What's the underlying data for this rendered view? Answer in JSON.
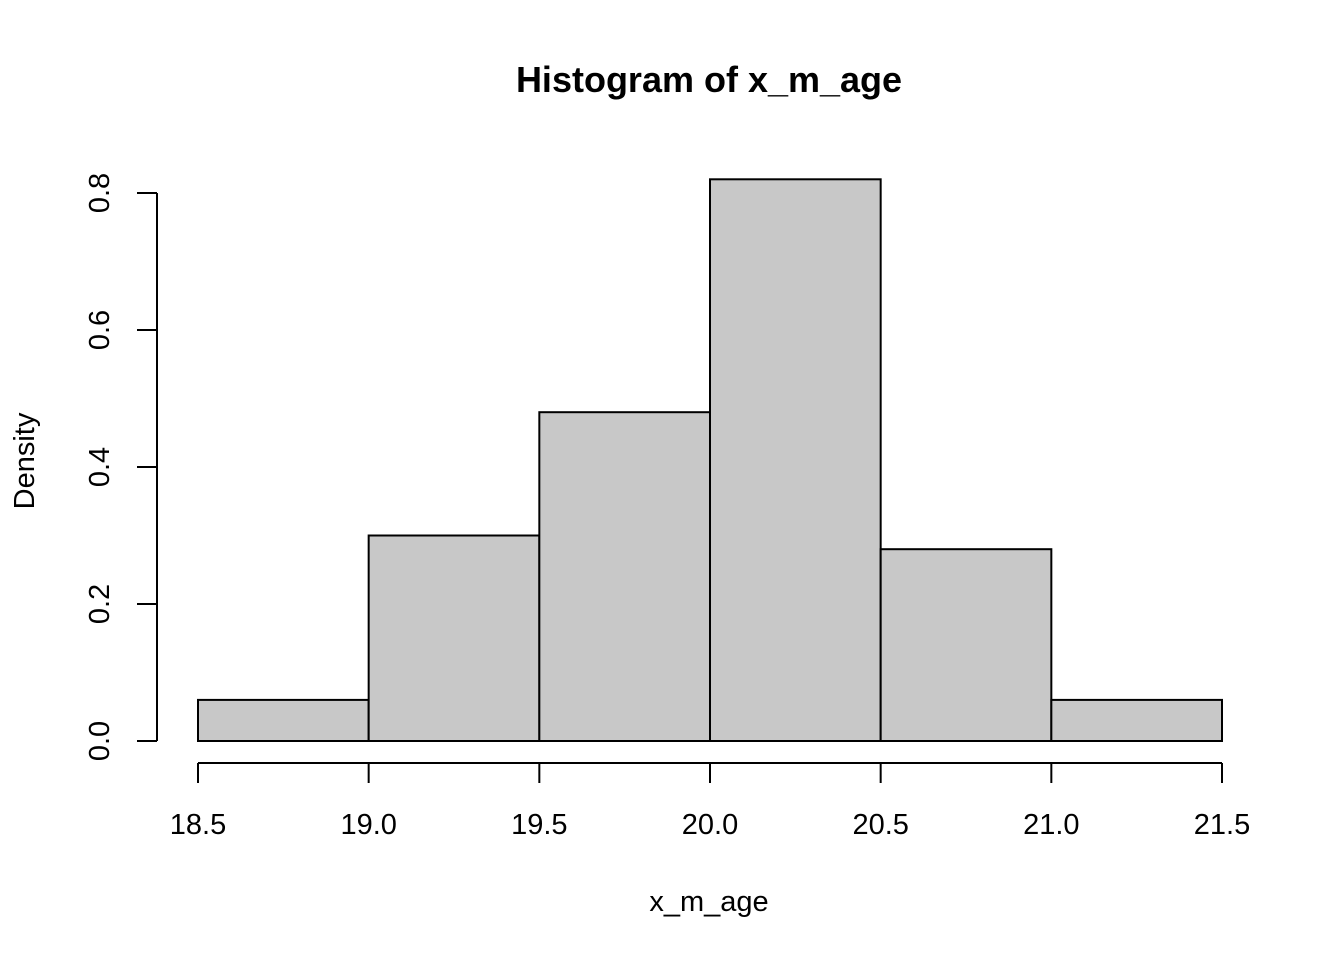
{
  "chart_data": {
    "type": "bar",
    "subtype": "histogram",
    "title": "Histogram of x_m_age",
    "xlabel": "x_m_age",
    "ylabel": "Density",
    "bins": [
      {
        "start": 18.5,
        "end": 19.0,
        "density": 0.06
      },
      {
        "start": 19.0,
        "end": 19.5,
        "density": 0.3
      },
      {
        "start": 19.5,
        "end": 20.0,
        "density": 0.48
      },
      {
        "start": 20.0,
        "end": 20.5,
        "density": 0.82
      },
      {
        "start": 20.5,
        "end": 21.0,
        "density": 0.28
      },
      {
        "start": 21.0,
        "end": 21.5,
        "density": 0.06
      }
    ],
    "xlim": [
      18.5,
      21.5
    ],
    "ylim": [
      0,
      0.8
    ],
    "x_ticks": [
      "18.5",
      "19.0",
      "19.5",
      "20.0",
      "20.5",
      "21.0",
      "21.5"
    ],
    "y_ticks": [
      "0.0",
      "0.2",
      "0.4",
      "0.6",
      "0.8"
    ],
    "grid": false,
    "bar_color": "#c8c8c8",
    "edge_color": "#000000"
  }
}
